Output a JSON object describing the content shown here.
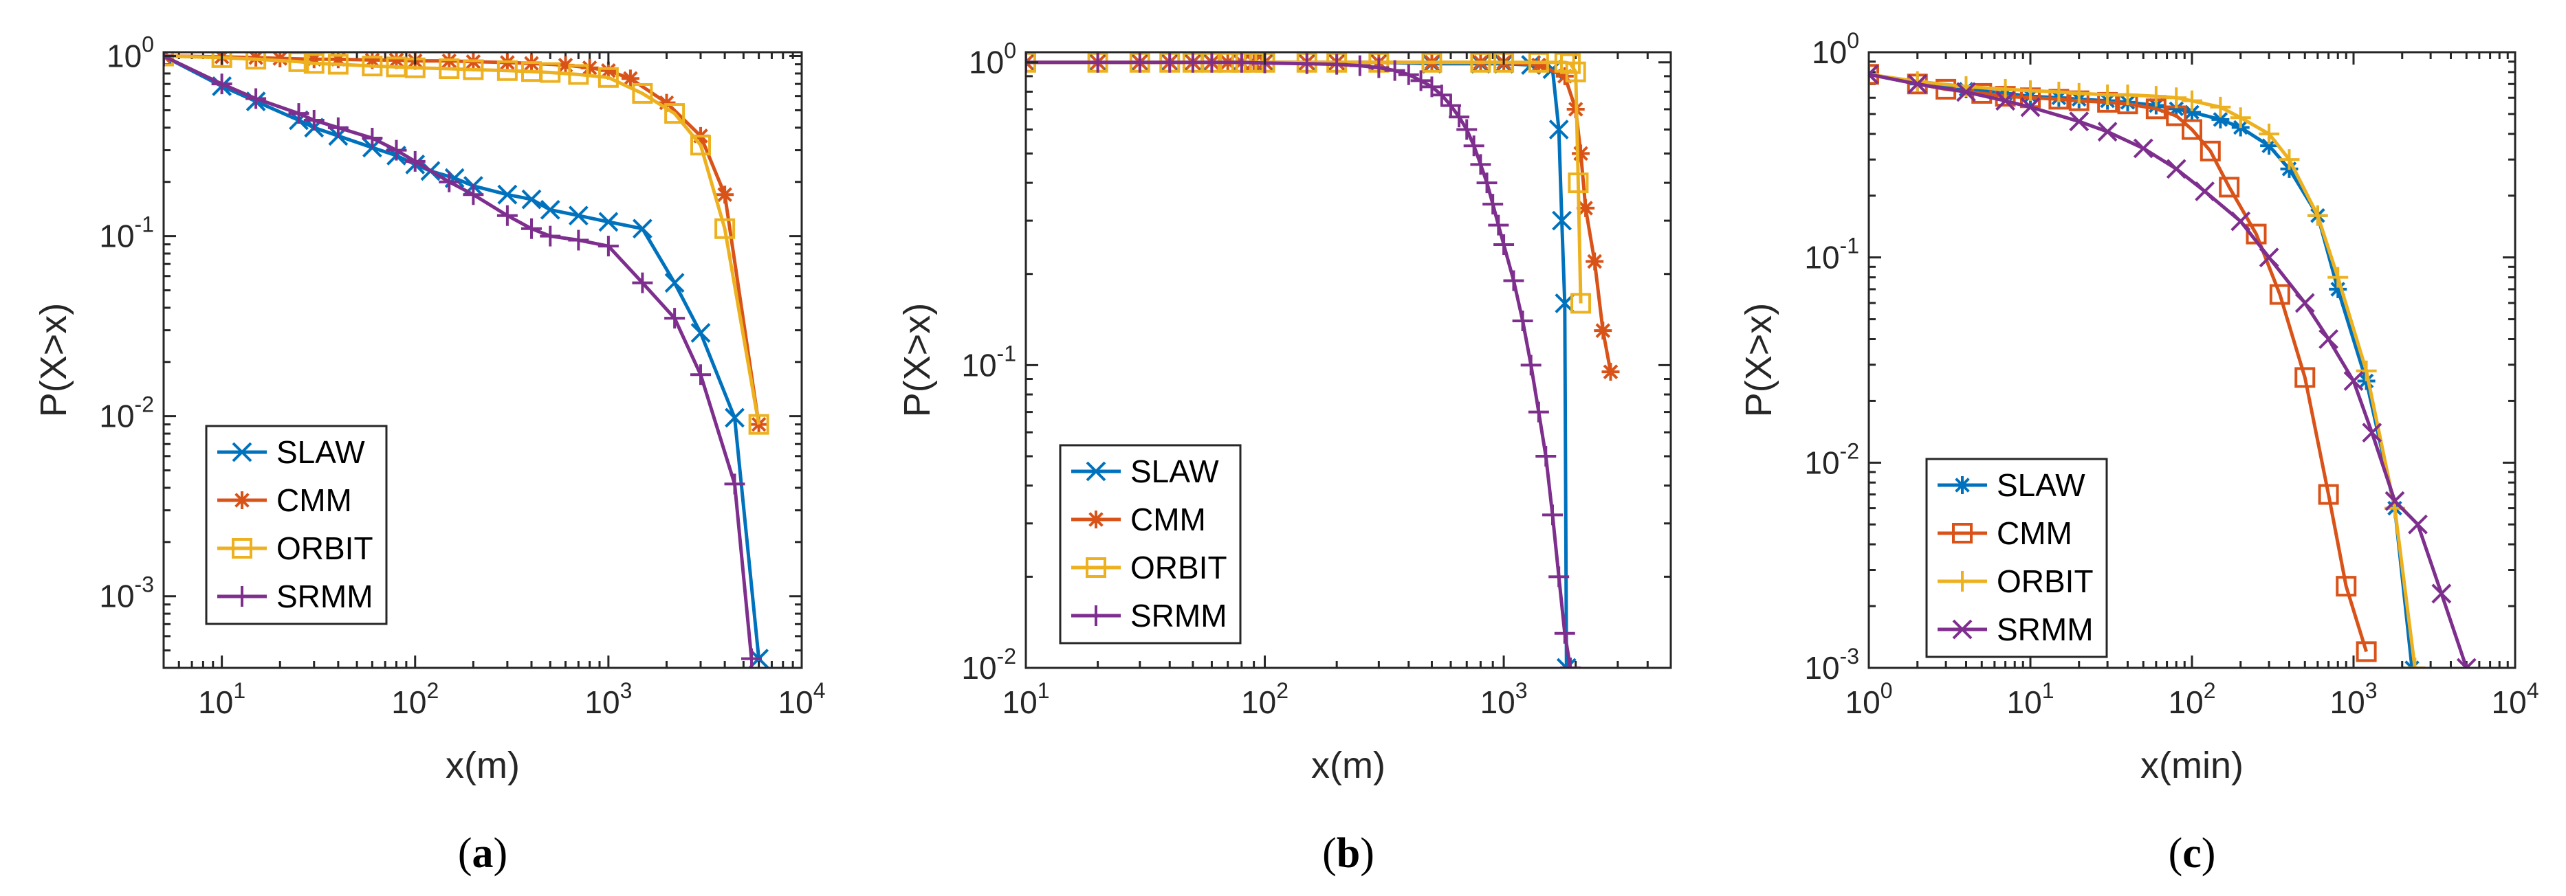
{
  "chart_data": [
    {
      "id": "a",
      "type": "line",
      "caption": "(a)",
      "xscale": "log",
      "yscale": "log",
      "xlim": [
        5,
        10000
      ],
      "ylim": [
        0.0004,
        1.05
      ],
      "xlabel": "x(m)",
      "ylabel": "P(X>x)",
      "xticks": [
        {
          "base": "10",
          "exp": "1",
          "v": 10
        },
        {
          "base": "10",
          "exp": "2",
          "v": 100
        },
        {
          "base": "10",
          "exp": "3",
          "v": 1000
        },
        {
          "base": "10",
          "exp": "4",
          "v": 10000
        }
      ],
      "yticks": [
        {
          "base": "10",
          "exp": "-3",
          "v": 0.001
        },
        {
          "base": "10",
          "exp": "-2",
          "v": 0.01
        },
        {
          "base": "10",
          "exp": "-1",
          "v": 0.1
        },
        {
          "base": "10",
          "exp": "0",
          "v": 1
        }
      ],
      "legend_position": "bottom-left",
      "series": [
        {
          "name": "SLAW",
          "color": "#0072BD",
          "marker": "x",
          "x": [
            5,
            10,
            15,
            25,
            30,
            40,
            60,
            80,
            100,
            120,
            160,
            200,
            300,
            400,
            500,
            700,
            1000,
            1500,
            2200,
            3000,
            4500,
            6000
          ],
          "y": [
            1.0,
            0.68,
            0.56,
            0.44,
            0.4,
            0.36,
            0.31,
            0.28,
            0.25,
            0.23,
            0.21,
            0.19,
            0.17,
            0.16,
            0.14,
            0.13,
            0.12,
            0.11,
            0.055,
            0.029,
            0.0098,
            0.00045
          ]
        },
        {
          "name": "CMM",
          "color": "#D95319",
          "marker": "*",
          "x": [
            5,
            10,
            15,
            20,
            30,
            40,
            60,
            80,
            100,
            150,
            200,
            300,
            400,
            600,
            800,
            1000,
            1300,
            2000,
            3000,
            4000,
            6000
          ],
          "y": [
            1.0,
            0.99,
            0.98,
            0.97,
            0.96,
            0.96,
            0.95,
            0.95,
            0.94,
            0.94,
            0.93,
            0.92,
            0.91,
            0.89,
            0.86,
            0.83,
            0.75,
            0.55,
            0.36,
            0.17,
            0.009
          ]
        },
        {
          "name": "ORBIT",
          "color": "#EDB120",
          "marker": "s",
          "x": [
            5,
            10,
            15,
            25,
            30,
            40,
            60,
            80,
            100,
            150,
            200,
            300,
            400,
            500,
            700,
            1000,
            1500,
            2200,
            3000,
            4000,
            6000
          ],
          "y": [
            1.0,
            0.98,
            0.96,
            0.93,
            0.91,
            0.9,
            0.88,
            0.87,
            0.86,
            0.85,
            0.84,
            0.83,
            0.82,
            0.81,
            0.79,
            0.76,
            0.62,
            0.48,
            0.32,
            0.11,
            0.009
          ]
        },
        {
          "name": "SRMM",
          "color": "#7E2F8E",
          "marker": "+",
          "x": [
            5,
            10,
            15,
            25,
            30,
            40,
            60,
            80,
            100,
            150,
            200,
            300,
            400,
            500,
            700,
            1000,
            1500,
            2200,
            3000,
            4500,
            5500
          ],
          "y": [
            1.0,
            0.7,
            0.58,
            0.48,
            0.44,
            0.4,
            0.35,
            0.3,
            0.26,
            0.2,
            0.17,
            0.13,
            0.11,
            0.1,
            0.095,
            0.088,
            0.055,
            0.035,
            0.017,
            0.0042,
            0.00045
          ]
        }
      ]
    },
    {
      "id": "b",
      "type": "line",
      "caption": "(b)",
      "xscale": "log",
      "yscale": "log",
      "xlim": [
        10,
        5000
      ],
      "ylim": [
        0.01,
        1.08
      ],
      "xlabel": "x(m)",
      "ylabel": "P(X>x)",
      "xticks": [
        {
          "base": "10",
          "exp": "1",
          "v": 10
        },
        {
          "base": "10",
          "exp": "2",
          "v": 100
        },
        {
          "base": "10",
          "exp": "3",
          "v": 1000
        }
      ],
      "yticks": [
        {
          "base": "10",
          "exp": "-2",
          "v": 0.01
        },
        {
          "base": "10",
          "exp": "-1",
          "v": 0.1
        },
        {
          "base": "10",
          "exp": "0",
          "v": 1
        }
      ],
      "legend_position": "bottom-left",
      "series": [
        {
          "name": "SLAW",
          "color": "#0072BD",
          "marker": "x",
          "x": [
            10,
            20,
            30,
            40,
            50,
            60,
            70,
            80,
            90,
            100,
            150,
            200,
            300,
            500,
            800,
            1000,
            1300,
            1600,
            1700,
            1750,
            1800,
            1830
          ],
          "y": [
            1.0,
            1.0,
            1.0,
            1.0,
            1.0,
            1.0,
            1.0,
            1.0,
            1.0,
            1.0,
            1.0,
            1.0,
            1.0,
            0.99,
            0.99,
            0.99,
            0.98,
            0.95,
            0.6,
            0.3,
            0.16,
            0.01
          ]
        },
        {
          "name": "CMM",
          "color": "#D95319",
          "marker": "*",
          "x": [
            10,
            20,
            30,
            40,
            50,
            60,
            70,
            80,
            90,
            100,
            150,
            200,
            300,
            500,
            800,
            1000,
            1400,
            1800,
            2000,
            2100,
            2200,
            2400,
            2600,
            2800
          ],
          "y": [
            1.0,
            1.0,
            1.0,
            1.0,
            1.0,
            1.0,
            1.0,
            1.0,
            1.0,
            1.0,
            1.0,
            1.0,
            1.0,
            1.0,
            1.0,
            1.0,
            0.98,
            0.9,
            0.7,
            0.5,
            0.33,
            0.22,
            0.13,
            0.095
          ]
        },
        {
          "name": "ORBIT",
          "color": "#EDB120",
          "marker": "s",
          "x": [
            10,
            20,
            30,
            40,
            50,
            60,
            70,
            80,
            90,
            100,
            150,
            200,
            300,
            500,
            800,
            1000,
            1400,
            1800,
            1900,
            2000,
            2050,
            2100
          ],
          "y": [
            1.0,
            1.0,
            1.0,
            1.0,
            1.0,
            1.0,
            1.0,
            1.0,
            1.0,
            1.0,
            1.0,
            1.0,
            1.0,
            1.0,
            1.0,
            1.0,
            1.0,
            1.0,
            0.99,
            0.93,
            0.4,
            0.16
          ]
        },
        {
          "name": "SRMM",
          "color": "#7E2F8E",
          "marker": "+",
          "x": [
            10,
            20,
            30,
            40,
            50,
            60,
            80,
            100,
            150,
            200,
            250,
            300,
            350,
            400,
            450,
            500,
            550,
            600,
            650,
            700,
            750,
            800,
            850,
            900,
            950,
            1000,
            1100,
            1200,
            1300,
            1400,
            1500,
            1600,
            1700,
            1800,
            1900,
            2000
          ],
          "y": [
            1.0,
            1.0,
            1.0,
            1.0,
            1.0,
            1.0,
            1.0,
            0.995,
            0.99,
            0.985,
            0.975,
            0.96,
            0.94,
            0.91,
            0.87,
            0.83,
            0.78,
            0.72,
            0.66,
            0.6,
            0.53,
            0.46,
            0.4,
            0.34,
            0.29,
            0.25,
            0.19,
            0.14,
            0.1,
            0.07,
            0.05,
            0.032,
            0.02,
            0.013,
            0.01,
            0.009
          ]
        }
      ]
    },
    {
      "id": "c",
      "type": "line",
      "caption": "(c)",
      "xscale": "log",
      "yscale": "log",
      "xlim": [
        1,
        10000
      ],
      "ylim": [
        0.001,
        1.0
      ],
      "xlabel": "x(min)",
      "ylabel": "P(X>x)",
      "xticks": [
        {
          "base": "10",
          "exp": "0",
          "v": 1
        },
        {
          "base": "10",
          "exp": "1",
          "v": 10
        },
        {
          "base": "10",
          "exp": "2",
          "v": 100
        },
        {
          "base": "10",
          "exp": "3",
          "v": 1000
        },
        {
          "base": "10",
          "exp": "4",
          "v": 10000
        }
      ],
      "yticks": [
        {
          "base": "10",
          "exp": "-3",
          "v": 0.001
        },
        {
          "base": "10",
          "exp": "-2",
          "v": 0.01
        },
        {
          "base": "10",
          "exp": "-1",
          "v": 0.1
        },
        {
          "base": "10",
          "exp": "0",
          "v": 1
        }
      ],
      "legend_position": "bottom-left",
      "series": [
        {
          "name": "SLAW",
          "color": "#0072BD",
          "marker": "*",
          "x": [
            1,
            2,
            4,
            7,
            10,
            15,
            20,
            30,
            40,
            60,
            80,
            100,
            150,
            200,
            300,
            400,
            600,
            800,
            1200,
            1800,
            2300
          ],
          "y": [
            0.78,
            0.7,
            0.66,
            0.63,
            0.61,
            0.6,
            0.59,
            0.58,
            0.57,
            0.55,
            0.53,
            0.51,
            0.47,
            0.43,
            0.35,
            0.27,
            0.16,
            0.07,
            0.025,
            0.006,
            0.001
          ]
        },
        {
          "name": "CMM",
          "color": "#D95319",
          "marker": "s",
          "x": [
            1,
            2,
            3,
            5,
            7,
            10,
            15,
            20,
            30,
            40,
            60,
            80,
            100,
            130,
            170,
            250,
            350,
            500,
            700,
            900,
            1200
          ],
          "y": [
            0.78,
            0.7,
            0.66,
            0.63,
            0.61,
            0.6,
            0.59,
            0.58,
            0.57,
            0.56,
            0.53,
            0.49,
            0.42,
            0.33,
            0.22,
            0.13,
            0.066,
            0.026,
            0.007,
            0.0025,
            0.0012
          ]
        },
        {
          "name": "ORBIT",
          "color": "#EDB120",
          "marker": "+",
          "x": [
            1,
            2,
            4,
            7,
            10,
            15,
            20,
            30,
            40,
            60,
            80,
            100,
            150,
            200,
            300,
            400,
            600,
            800,
            1200,
            1800,
            2400
          ],
          "y": [
            0.78,
            0.72,
            0.68,
            0.66,
            0.65,
            0.64,
            0.63,
            0.62,
            0.62,
            0.61,
            0.6,
            0.58,
            0.54,
            0.48,
            0.4,
            0.3,
            0.16,
            0.08,
            0.028,
            0.006,
            0.001
          ]
        },
        {
          "name": "SRMM",
          "color": "#7E2F8E",
          "marker": "x",
          "x": [
            1,
            2,
            4,
            7,
            10,
            20,
            30,
            50,
            80,
            120,
            200,
            300,
            500,
            700,
            1000,
            1300,
            1800,
            2500,
            3500,
            5000
          ],
          "y": [
            0.78,
            0.7,
            0.64,
            0.58,
            0.54,
            0.46,
            0.41,
            0.34,
            0.27,
            0.21,
            0.15,
            0.1,
            0.06,
            0.04,
            0.025,
            0.014,
            0.0065,
            0.005,
            0.0023,
            0.001
          ]
        }
      ]
    }
  ]
}
